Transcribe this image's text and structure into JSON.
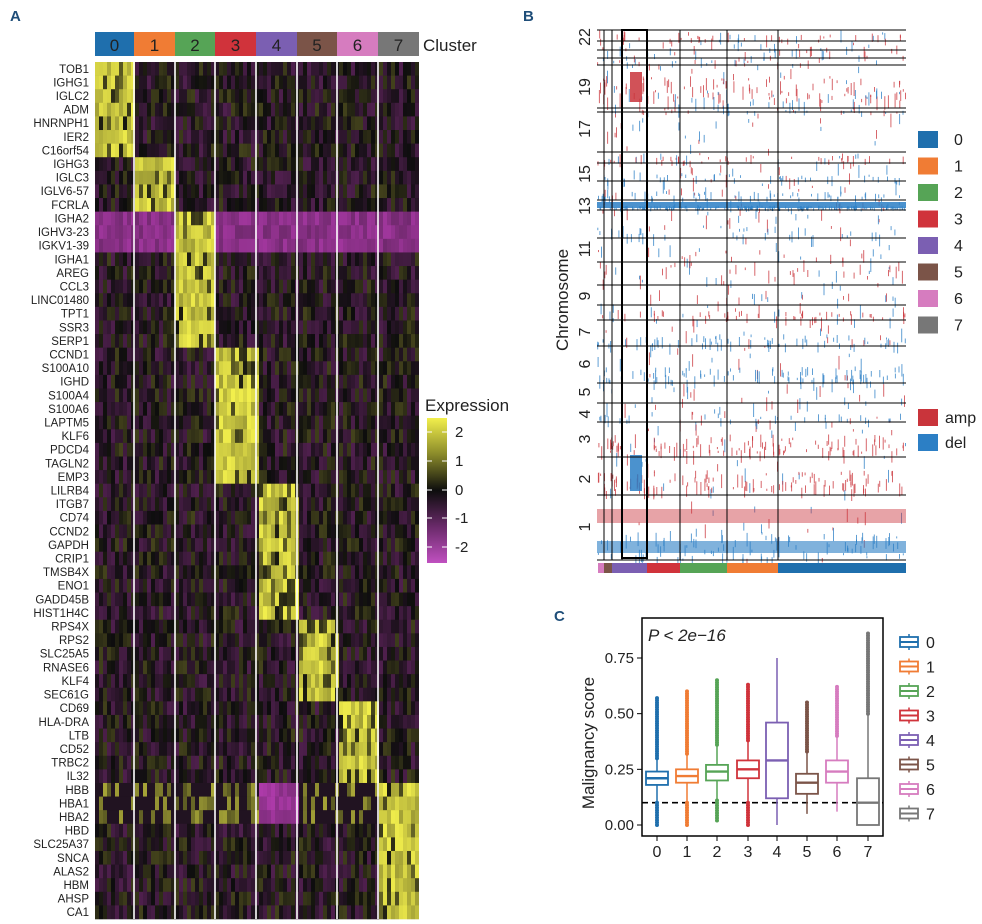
{
  "panels": {
    "a": "A",
    "b": "B",
    "c": "C"
  },
  "colors": {
    "clusters": [
      "#1f6fad",
      "#f07c34",
      "#56a456",
      "#d0333b",
      "#7b5fb2",
      "#7b5448",
      "#d67cbf",
      "#777777"
    ],
    "amp": "#c9343b",
    "del": "#2c7fc5",
    "heat_low": "#b43cb0",
    "heat_mid": "#0d0d0d",
    "heat_high": "#f2ef4c"
  },
  "chart_data": [
    {
      "id": "A",
      "type": "heatmap",
      "cluster_title": "Cluster",
      "clusters": [
        "0",
        "1",
        "2",
        "3",
        "4",
        "5",
        "6",
        "7"
      ],
      "genes": [
        "TOB1",
        "IGHG1",
        "IGLC2",
        "ADM",
        "HNRNPH1",
        "IER2",
        "C16orf54",
        "IGHG3",
        "IGLC3",
        "IGLV6-57",
        "FCRLA",
        "IGHA2",
        "IGHV3-23",
        "IGKV1-39",
        "IGHA1",
        "AREG",
        "CCL3",
        "LINC01480",
        "TPT1",
        "SSR3",
        "SERP1",
        "CCND1",
        "S100A10",
        "IGHD",
        "S100A4",
        "S100A6",
        "LAPTM5",
        "KLF6",
        "PDCD4",
        "TAGLN2",
        "EMP3",
        "LILRB4",
        "ITGB7",
        "CD74",
        "CCND2",
        "GAPDH",
        "CRIP1",
        "TMSB4X",
        "ENO1",
        "GADD45B",
        "HIST1H4C",
        "RPS4X",
        "RPS2",
        "SLC25A5",
        "RNASE6",
        "KLF4",
        "SEC61G",
        "CD69",
        "HLA-DRA",
        "LTB",
        "CD52",
        "TRBC2",
        "IL32",
        "HBB",
        "HBA1",
        "HBA2",
        "HBD",
        "SLC25A37",
        "SNCA",
        "ALAS2",
        "HBM",
        "AHSP",
        "CA1"
      ],
      "gene_cluster": [
        0,
        0,
        0,
        0,
        0,
        0,
        0,
        1,
        1,
        1,
        1,
        2,
        2,
        2,
        2,
        2,
        2,
        2,
        2,
        2,
        2,
        3,
        3,
        3,
        3,
        3,
        3,
        3,
        3,
        3,
        3,
        4,
        4,
        4,
        4,
        4,
        4,
        4,
        4,
        4,
        4,
        5,
        5,
        5,
        5,
        5,
        5,
        6,
        6,
        6,
        6,
        6,
        6,
        7,
        7,
        7,
        7,
        7,
        7,
        7,
        7,
        7,
        7
      ],
      "legend_title": "Expression",
      "legend_ticks": [
        "2",
        "1",
        "0",
        "-1",
        "-2"
      ],
      "color_range": [
        -2.5,
        2.5
      ]
    },
    {
      "id": "B",
      "type": "heatmap",
      "ylabel": "Chromosome",
      "ytick_labels": [
        "22",
        "19",
        "17",
        "15",
        "13",
        "11",
        "9",
        "7",
        "6",
        "5",
        "4",
        "3",
        "2",
        "1"
      ],
      "cluster_legend": [
        "0",
        "1",
        "2",
        "3",
        "4",
        "5",
        "6",
        "7"
      ],
      "cnv_legend": [
        "amp",
        "del"
      ],
      "bottom_bar_clusters": [
        6,
        5,
        4,
        3,
        2,
        1,
        0
      ]
    },
    {
      "id": "C",
      "type": "boxplot",
      "annotation": "P < 2e−16",
      "ylabel": "Malignancy score",
      "categories": [
        "0",
        "1",
        "2",
        "3",
        "4",
        "5",
        "6",
        "7"
      ],
      "ylim": [
        -0.02,
        0.9
      ],
      "yticks": [
        "0.00",
        "0.25",
        "0.50",
        "0.75"
      ],
      "threshold": 0.1,
      "boxes": [
        {
          "name": "0",
          "q1": 0.18,
          "median": 0.21,
          "q3": 0.24,
          "whisker_low": 0.1,
          "whisker_high": 0.3,
          "out_low": 0.0,
          "out_high": 0.57
        },
        {
          "name": "1",
          "q1": 0.19,
          "median": 0.22,
          "q3": 0.25,
          "whisker_low": 0.1,
          "whisker_high": 0.32,
          "out_low": 0.0,
          "out_high": 0.6
        },
        {
          "name": "2",
          "q1": 0.2,
          "median": 0.24,
          "q3": 0.27,
          "whisker_low": 0.11,
          "whisker_high": 0.36,
          "out_low": 0.02,
          "out_high": 0.65
        },
        {
          "name": "3",
          "q1": 0.21,
          "median": 0.25,
          "q3": 0.29,
          "whisker_low": 0.1,
          "whisker_high": 0.38,
          "out_low": 0.0,
          "out_high": 0.63
        },
        {
          "name": "4",
          "q1": 0.12,
          "median": 0.29,
          "q3": 0.46,
          "whisker_low": 0.0,
          "whisker_high": 0.75,
          "out_low": null,
          "out_high": null
        },
        {
          "name": "5",
          "q1": 0.14,
          "median": 0.19,
          "q3": 0.23,
          "whisker_low": 0.05,
          "whisker_high": 0.33,
          "out_low": null,
          "out_high": 0.55
        },
        {
          "name": "6",
          "q1": 0.19,
          "median": 0.24,
          "q3": 0.29,
          "whisker_low": 0.06,
          "whisker_high": 0.4,
          "out_low": null,
          "out_high": 0.62
        },
        {
          "name": "7",
          "q1": 0.0,
          "median": 0.1,
          "q3": 0.21,
          "whisker_low": 0.0,
          "whisker_high": 0.5,
          "out_low": null,
          "out_high": 0.86
        }
      ]
    }
  ]
}
